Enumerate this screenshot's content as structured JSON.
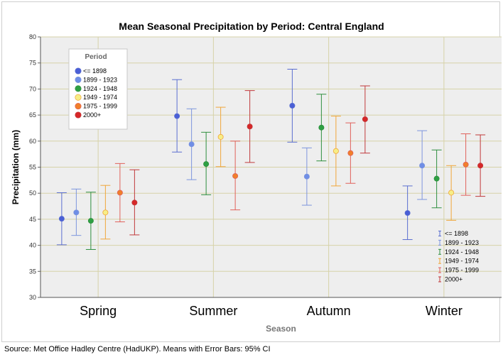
{
  "source_note": "Source: Met Office Hadley Centre (HadUKP). Means with Error Bars: 95% CI",
  "chart_data": {
    "type": "scatter",
    "subtype": "means-with-error-bars",
    "title": "Mean Seasonal Precipitation by Period: Central England",
    "xlabel": "Season",
    "ylabel": "Precipitation (mm)",
    "ylim": [
      30,
      80
    ],
    "ytick_step": 5,
    "grid": true,
    "categories": [
      "Spring",
      "Summer",
      "Autumn",
      "Winter"
    ],
    "legend_title": "Period",
    "legend_position": "top-left",
    "errorbar_legend_position": "bottom-right",
    "series": [
      {
        "name": "<= 1898",
        "color": "#4a5fd6",
        "fill": "#4a5fd6",
        "bar_color": "#5a6ed0",
        "means": [
          45.1,
          64.8,
          66.8,
          46.2
        ],
        "lower": [
          40.1,
          57.9,
          59.8,
          41.1
        ],
        "upper": [
          50.1,
          71.8,
          73.8,
          51.4
        ]
      },
      {
        "name": "1899 - 1923",
        "color": "#6f8ee6",
        "fill": "#6f8ee6",
        "bar_color": "#7d95dd",
        "means": [
          46.3,
          59.4,
          53.2,
          55.3
        ],
        "lower": [
          41.9,
          52.6,
          47.7,
          48.8
        ],
        "upper": [
          50.8,
          66.2,
          58.7,
          62.0
        ]
      },
      {
        "name": "1924 - 1948",
        "color": "#2ea043",
        "fill": "#2ea043",
        "bar_color": "#2f8f3f",
        "means": [
          44.7,
          55.6,
          62.6,
          52.8
        ],
        "lower": [
          39.2,
          49.7,
          56.2,
          47.2
        ],
        "upper": [
          50.2,
          61.7,
          69.0,
          58.3
        ]
      },
      {
        "name": "1949 - 1974",
        "color": "#f2e35a",
        "fill": "#f7ee86",
        "bar_color": "#f0a63a",
        "means": [
          46.3,
          60.8,
          58.1,
          50.1
        ],
        "lower": [
          41.2,
          55.1,
          51.4,
          44.8
        ],
        "upper": [
          51.5,
          66.5,
          64.8,
          55.3
        ]
      },
      {
        "name": "1975 - 1999",
        "color": "#f07f2a",
        "fill": "#f07f2a",
        "bar_color": "#e0605a",
        "means": [
          50.1,
          53.3,
          57.7,
          55.5
        ],
        "lower": [
          44.5,
          46.8,
          51.9,
          49.6
        ],
        "upper": [
          55.7,
          60.0,
          63.5,
          61.4
        ]
      },
      {
        "name": "2000+",
        "color": "#d62728",
        "fill": "#d62728",
        "bar_color": "#c0393b",
        "means": [
          48.2,
          62.8,
          64.2,
          55.3
        ],
        "lower": [
          42.0,
          55.9,
          57.7,
          49.4
        ],
        "upper": [
          54.5,
          69.7,
          70.6,
          61.2
        ]
      }
    ]
  }
}
